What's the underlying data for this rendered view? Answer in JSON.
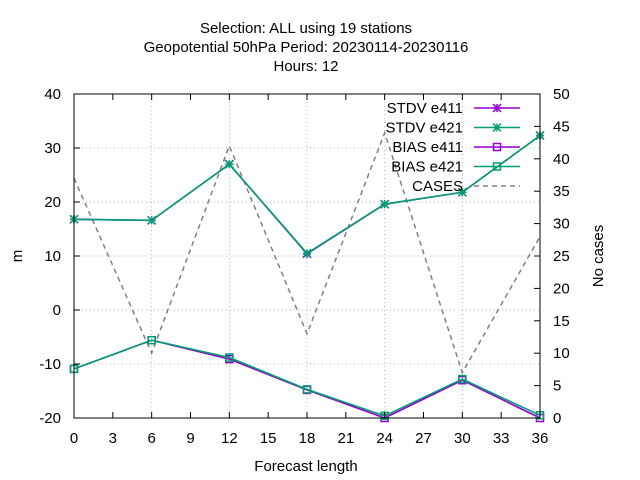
{
  "chart_data": {
    "type": "line",
    "title_lines": [
      "Selection: ALL using    19 stations",
      "Geopotential 50hPa   Period: 20230114-20230116",
      "Hours:  12"
    ],
    "xlabel": "Forecast length",
    "ylabel": "m",
    "y2label": "No cases",
    "xlim": [
      0,
      36
    ],
    "ylim": [
      -20,
      40
    ],
    "y2lim": [
      0,
      50
    ],
    "xticks": [
      0,
      3,
      6,
      9,
      12,
      15,
      18,
      21,
      24,
      27,
      30,
      33,
      36
    ],
    "yticks": [
      -20,
      -10,
      0,
      10,
      20,
      30,
      40
    ],
    "y2ticks": [
      0,
      5,
      10,
      15,
      20,
      25,
      30,
      35,
      40,
      45,
      50
    ],
    "grid": true,
    "legend_position": "top-right",
    "x": [
      0,
      6,
      12,
      18,
      24,
      30,
      36
    ],
    "series": [
      {
        "name": "STDV e411",
        "color": "#9400d3",
        "marker": "star",
        "dash": "solid",
        "axis": "y1",
        "values": [
          16.8,
          16.6,
          27.0,
          10.4,
          19.6,
          21.8,
          32.3
        ]
      },
      {
        "name": "STDV e421",
        "color": "#009e73",
        "marker": "star",
        "dash": "solid",
        "axis": "y1",
        "values": [
          16.8,
          16.6,
          27.0,
          10.5,
          19.6,
          21.8,
          32.3
        ]
      },
      {
        "name": "BIAS e411",
        "color": "#9400d3",
        "marker": "square",
        "dash": "solid",
        "axis": "y1",
        "values": [
          -10.9,
          -5.6,
          -9.1,
          -14.8,
          -20.0,
          -13.0,
          -20.0
        ]
      },
      {
        "name": "BIAS e421",
        "color": "#009e73",
        "marker": "square",
        "dash": "solid",
        "axis": "y1",
        "values": [
          -10.9,
          -5.6,
          -8.8,
          -14.7,
          -19.6,
          -12.8,
          -19.5
        ]
      },
      {
        "name": "CASES",
        "color": "#808080",
        "marker": "none",
        "dash": "dashed",
        "axis": "y2",
        "values": [
          37,
          10,
          42,
          13,
          44,
          7,
          28
        ]
      }
    ]
  }
}
